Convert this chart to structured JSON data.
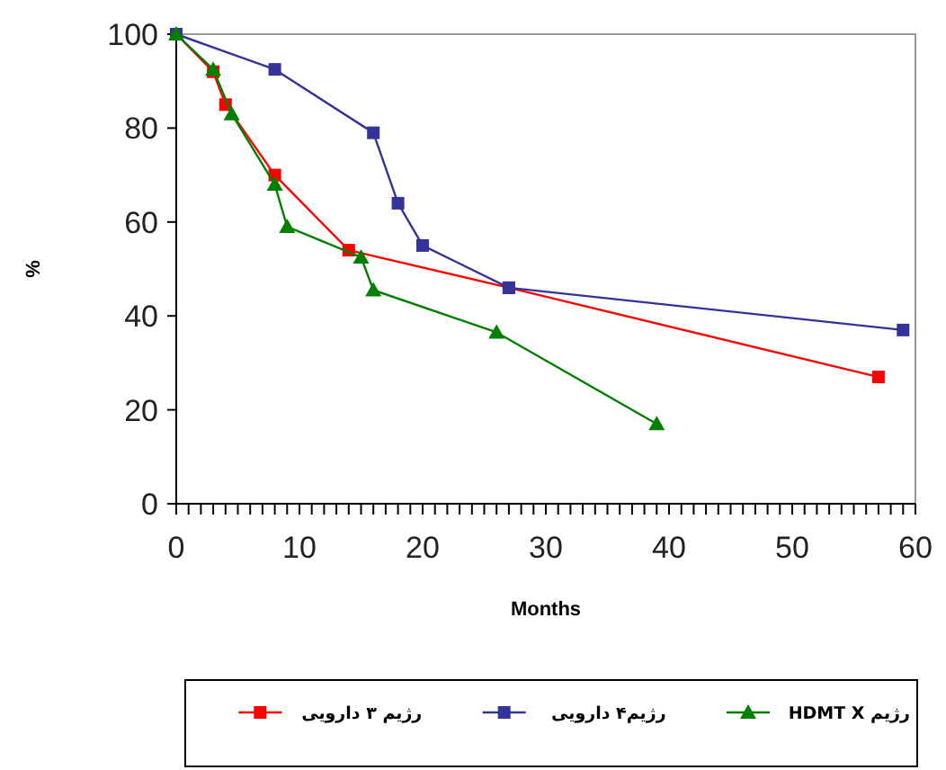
{
  "chart_data": {
    "type": "line",
    "xlabel": "Months",
    "ylabel": "%",
    "xlim": [
      0,
      60
    ],
    "ylim": [
      0,
      100
    ],
    "xticks": [
      0,
      {
        "value": 1,
        "label": null
      },
      {
        "value": 2,
        "label": null
      },
      {
        "value": 3,
        "label": null
      },
      {
        "value": 4,
        "label": null
      },
      {
        "value": 5,
        "label": null
      },
      {
        "value": 6,
        "label": null
      },
      {
        "value": 7,
        "label": null
      },
      {
        "value": 8,
        "label": null
      },
      {
        "value": 9,
        "label": null
      },
      10,
      {
        "value": 11,
        "label": null
      },
      {
        "value": 12,
        "label": null
      },
      {
        "value": 13,
        "label": null
      },
      {
        "value": 14,
        "label": null
      },
      {
        "value": 15,
        "label": null
      },
      {
        "value": 16,
        "label": null
      },
      {
        "value": 17,
        "label": null
      },
      {
        "value": 18,
        "label": null
      },
      {
        "value": 19,
        "label": null
      },
      20,
      {
        "value": 21,
        "label": null
      },
      {
        "value": 22,
        "label": null
      },
      {
        "value": 23,
        "label": null
      },
      {
        "value": 24,
        "label": null
      },
      {
        "value": 25,
        "label": null
      },
      {
        "value": 26,
        "label": null
      },
      {
        "value": 27,
        "label": null
      },
      {
        "value": 28,
        "label": null
      },
      {
        "value": 29,
        "label": null
      },
      30,
      {
        "value": 31,
        "label": null
      },
      {
        "value": 32,
        "label": null
      },
      {
        "value": 33,
        "label": null
      },
      {
        "value": 34,
        "label": null
      },
      {
        "value": 35,
        "label": null
      },
      {
        "value": 36,
        "label": null
      },
      {
        "value": 37,
        "label": null
      },
      {
        "value": 38,
        "label": null
      },
      {
        "value": 39,
        "label": null
      },
      40,
      {
        "value": 41,
        "label": null
      },
      {
        "value": 42,
        "label": null
      },
      {
        "value": 43,
        "label": null
      },
      {
        "value": 44,
        "label": null
      },
      {
        "value": 45,
        "label": null
      },
      {
        "value": 46,
        "label": null
      },
      {
        "value": 47,
        "label": null
      },
      {
        "value": 48,
        "label": null
      },
      {
        "value": 49,
        "label": null
      },
      50,
      {
        "value": 51,
        "label": null
      },
      {
        "value": 52,
        "label": null
      },
      {
        "value": 53,
        "label": null
      },
      {
        "value": 54,
        "label": null
      },
      {
        "value": 55,
        "label": null
      },
      {
        "value": 56,
        "label": null
      },
      {
        "value": 57,
        "label": null
      },
      {
        "value": 58,
        "label": null
      },
      {
        "value": 59,
        "label": null
      },
      60
    ],
    "yticks": [
      0,
      20,
      40,
      60,
      80,
      100
    ],
    "grid": false,
    "legend": "bottom",
    "line_style": "solid",
    "series": [
      {
        "name": "رژیم ۳ دارویی",
        "color": "#ff0000",
        "marker": "square",
        "x": [
          0,
          3,
          4,
          8,
          14,
          27,
          57
        ],
        "values": [
          100,
          92,
          85,
          70,
          54,
          46,
          27
        ]
      },
      {
        "name": "رژیم۴ دارویی",
        "color": "#333399",
        "marker": "square",
        "x": [
          0,
          8,
          16,
          18,
          20,
          27,
          59
        ],
        "values": [
          100,
          92.5,
          79,
          64,
          55,
          46,
          37
        ]
      },
      {
        "name": "رژیم HDMT X",
        "color": "#008000",
        "marker": "triangle",
        "x": [
          0,
          3,
          4.5,
          8,
          9,
          15,
          16,
          26,
          39
        ],
        "values": [
          100,
          92.5,
          83,
          68,
          59,
          52.5,
          45.5,
          36.5,
          17
        ]
      }
    ]
  }
}
